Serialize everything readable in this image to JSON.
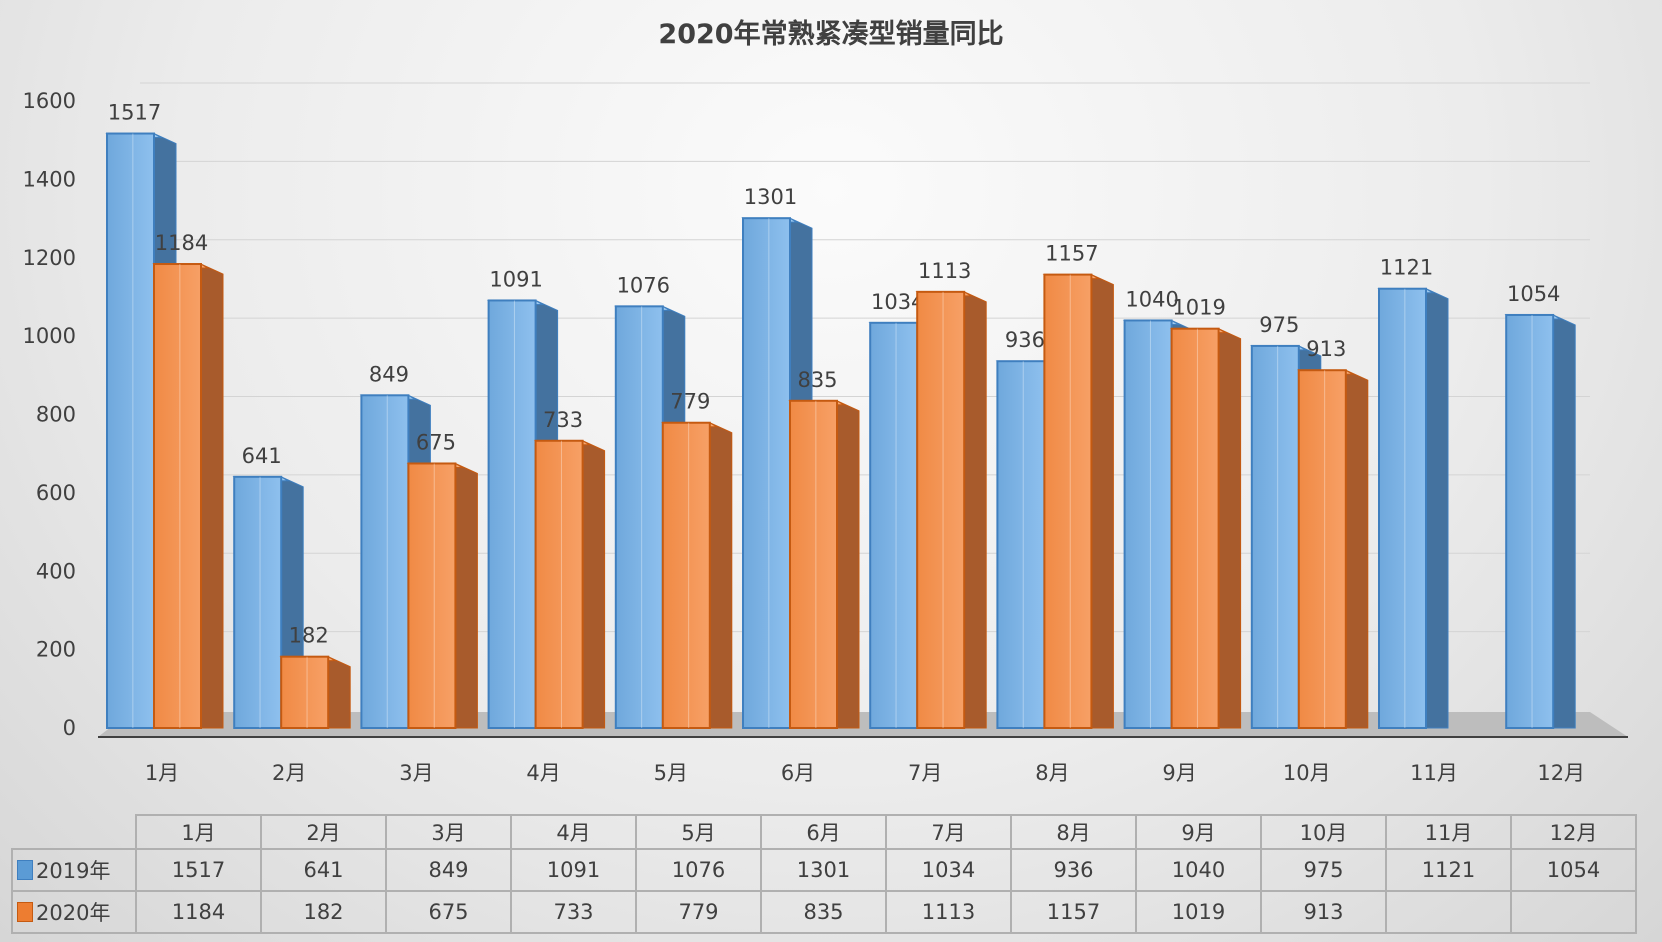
{
  "chart_data": {
    "type": "bar",
    "title": "2020年常熟紧凑型销量同比",
    "categories": [
      "1月",
      "2月",
      "3月",
      "4月",
      "5月",
      "6月",
      "7月",
      "8月",
      "9月",
      "10月",
      "11月",
      "12月"
    ],
    "series": [
      {
        "name": "2019年",
        "color": "#5B9BD5",
        "values": [
          1517,
          641,
          849,
          1091,
          1076,
          1301,
          1034,
          936,
          1040,
          975,
          1121,
          1054
        ]
      },
      {
        "name": "2020年",
        "color": "#ED7D31",
        "values": [
          1184,
          182,
          675,
          733,
          779,
          835,
          1113,
          1157,
          1019,
          913,
          null,
          null
        ]
      }
    ],
    "yticks": [
      0,
      200,
      400,
      600,
      800,
      1000,
      1200,
      1400,
      1600
    ],
    "ylim": [
      0,
      1600
    ],
    "xlabel": "",
    "ylabel": "",
    "grid": true,
    "legend": "data-table-bottom"
  }
}
